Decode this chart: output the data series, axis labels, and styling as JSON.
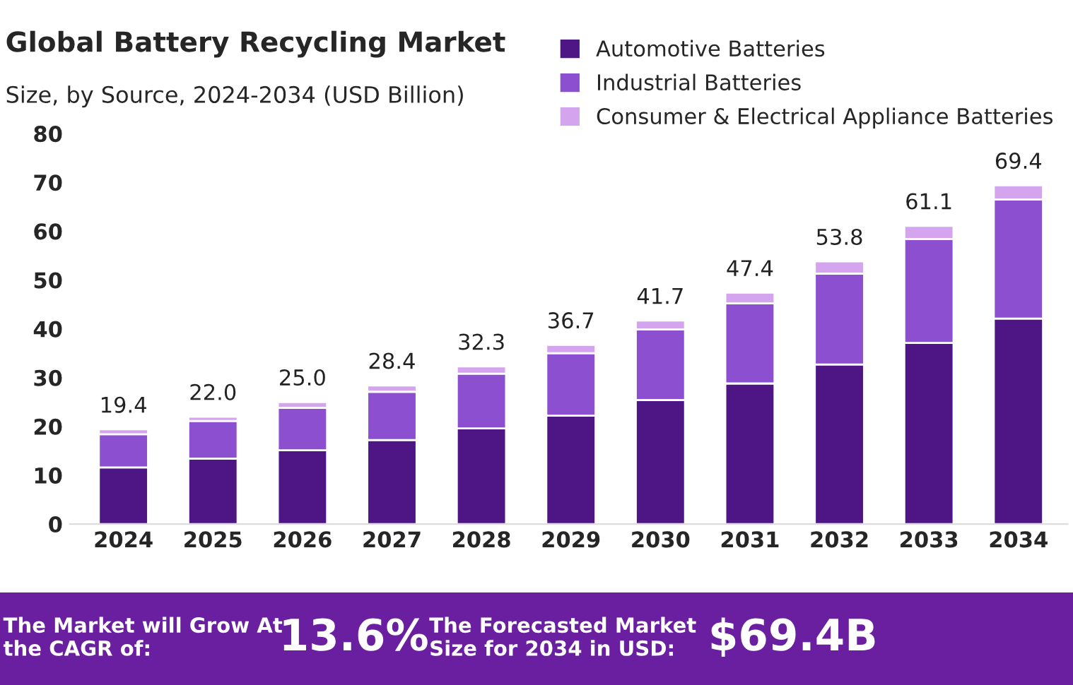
{
  "chart_data": {
    "type": "bar",
    "title": "Global Battery Recycling Market",
    "subtitle": "Size, by Source, 2024-2034 (USD Billion)",
    "categories": [
      "2024",
      "2025",
      "2026",
      "2027",
      "2028",
      "2029",
      "2030",
      "2031",
      "2032",
      "2033",
      "2034"
    ],
    "stacked": true,
    "series": [
      {
        "name": "Automotive Batteries",
        "color": "#4e1684",
        "values": [
          11.6,
          13.4,
          15.1,
          17.2,
          19.6,
          22.2,
          25.4,
          28.8,
          32.7,
          37.1,
          42.1
        ]
      },
      {
        "name": "Industrial Batteries",
        "color": "#8b4fd0",
        "values": [
          6.8,
          7.7,
          8.7,
          9.9,
          11.2,
          12.8,
          14.5,
          16.4,
          18.6,
          21.3,
          24.4
        ]
      },
      {
        "name": "Consumer & Electrical Appliance Batteries",
        "color": "#d4a5ee",
        "values": [
          1.0,
          0.9,
          1.2,
          1.3,
          1.5,
          1.7,
          1.8,
          2.2,
          2.5,
          2.7,
          2.9
        ]
      }
    ],
    "totals": [
      "19.4",
      "22.0",
      "25.0",
      "28.4",
      "32.3",
      "36.7",
      "41.7",
      "47.4",
      "53.8",
      "61.1",
      "69.4"
    ],
    "ylim": [
      0,
      80
    ],
    "yticks": [
      0,
      10,
      20,
      30,
      40,
      50,
      60,
      70,
      80
    ],
    "grid": false,
    "legend": "top right",
    "annotations": [
      "The Market will Grow At the CAGR of:",
      "13.6%",
      "The Forecasted Market Size for 2034 in USD:",
      "$69.4B"
    ]
  }
}
